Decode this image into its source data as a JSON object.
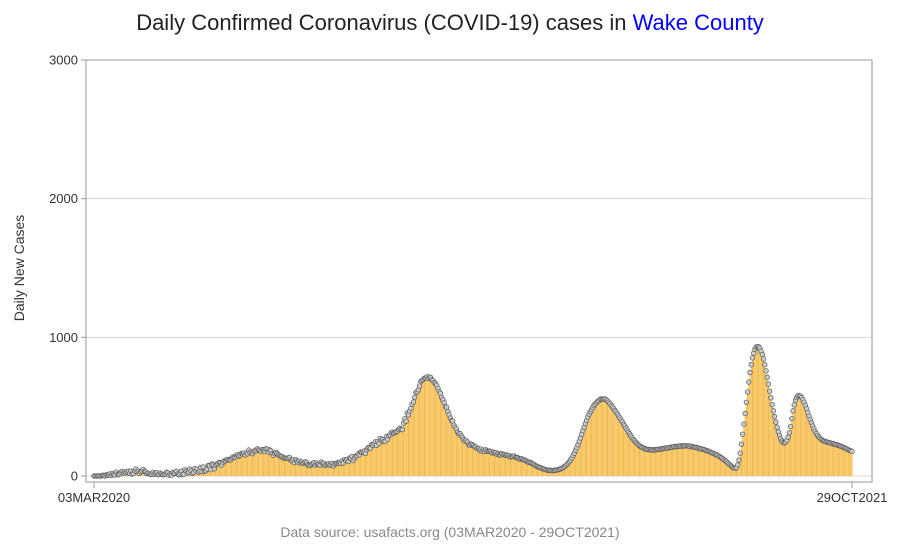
{
  "chart_data": {
    "type": "needle",
    "title_prefix": "Daily Confirmed Coronavirus (COVID-19) cases in ",
    "title_highlight": "Wake County",
    "ylabel": "Daily New Cases",
    "ylim": [
      0,
      3000
    ],
    "yticks": [
      0,
      1000,
      2000,
      3000
    ],
    "xlim": [
      "2020-03-03",
      "2021-10-29"
    ],
    "xtick_labels": [
      "03MAR2020",
      "29OCT2021"
    ],
    "grid": "horizontal",
    "source": "Data source: usafacts.org (03MAR2020 - 29OCT2021)",
    "colors": {
      "needle": "#f5b942",
      "marker_fill": "#cccccc",
      "marker_stroke": "#555555",
      "highlight": "#0000ff",
      "grid": "#d8d8d8",
      "frame": "#999999"
    },
    "series": [
      {
        "values": [
          0,
          0,
          0,
          0,
          1,
          0,
          2,
          5,
          5,
          0,
          8,
          5,
          10,
          15,
          4,
          16,
          10,
          7,
          28,
          13,
          9,
          14,
          28,
          34,
          21,
          29,
          23,
          30,
          35,
          18,
          35,
          14,
          18,
          37,
          50,
          31,
          35,
          20,
          31,
          37,
          48,
          33,
          31,
          18,
          21,
          18,
          10,
          13,
          27,
          12,
          20,
          25,
          9,
          10,
          21,
          14,
          8,
          11,
          15,
          28,
          22,
          5,
          15,
          7,
          25,
          16,
          21,
          35,
          14,
          8,
          15,
          35,
          11,
          12,
          45,
          34,
          22,
          29,
          50,
          37,
          17,
          26,
          53,
          37,
          49,
          28,
          36,
          61,
          31,
          66,
          34,
          38,
          51,
          76,
          73,
          46,
          86,
          81,
          52,
          77,
          87,
          89,
          99,
          95,
          79,
          98,
          109,
          109,
          118,
          120,
          115,
          115,
          126,
          138,
          133,
          135,
          149,
          154,
          143,
          150,
          162,
          160,
          166,
          152,
          167,
          160,
          187,
          168,
          172,
          161,
          176,
          185,
          182,
          196,
          187,
          185,
          177,
          190,
          190,
          180,
          196,
          194,
          174,
          188,
          182,
          160,
          150,
          162,
          171,
          163,
          153,
          147,
          141,
          141,
          131,
          130,
          129,
          128,
          128,
          134,
          115,
          108,
          116,
          97,
          118,
          108,
          100,
          108,
          95,
          101,
          91,
          97,
          102,
          97,
          81,
          77,
          75,
          85,
          93,
          95,
          79,
          94,
          84,
          83,
          77,
          101,
          91,
          92,
          76,
          84,
          83,
          89,
          78,
          80,
          91,
          73,
          88,
          89,
          95,
          93,
          100,
          91,
          109,
          95,
          119,
          112,
          118,
          105,
          130,
          128,
          141,
          111,
          130,
          143,
          145,
          159,
          153,
          173,
          170,
          175,
          180,
          163,
          190,
          204,
          204,
          199,
          227,
          222,
          233,
          247,
          221,
          248,
          236,
          271,
          255,
          262,
          249,
          250,
          284,
          265,
          290,
          296,
          311,
          316,
          308,
          313,
          319,
          324,
          335,
          344,
          337,
          334,
          381,
          414,
          395,
          453,
          440,
          469,
          489,
          518,
          534,
          567,
          601,
          608,
          622,
          649,
          681,
          690,
          696,
          706,
          708,
          716,
          704,
          713,
          711,
          694,
          687,
          674,
          664,
          654,
          632,
          609,
          595,
          567,
          549,
          527,
          501,
          496,
          465,
          443,
          418,
          400,
          396,
          367,
          351,
          338,
          315,
          304,
          306,
          289,
          277,
          262,
          251,
          256,
          245,
          226,
          220,
          230,
          225,
          217,
          209,
          211,
          198,
          198,
          185,
          194,
          180,
          187,
          177,
          188,
          179,
          180,
          179,
          175,
          167,
          172,
          166,
          168,
          157,
          162,
          153,
          151,
          161,
          155,
          156,
          149,
          152,
          146,
          148,
          137,
          140,
          141,
          145,
          135,
          133,
          131,
          125,
          122,
          125,
          121,
          115,
          114,
          108,
          102,
          98,
          99,
          94,
          88,
          84,
          77,
          72,
          68,
          64,
          61,
          58,
          53,
          51,
          47,
          45,
          42,
          42,
          41,
          40,
          39,
          40,
          41,
          42,
          44,
          47,
          49,
          53,
          57,
          62,
          68,
          75,
          84,
          94,
          104,
          116,
          131,
          148,
          165,
          185,
          205,
          226,
          249,
          274,
          301,
          328,
          352,
          378,
          402,
          426,
          446,
          463,
          478,
          494,
          508,
          517,
          528,
          538,
          543,
          553,
          555,
          554,
          555,
          555,
          549,
          541,
          532,
          522,
          509,
          498,
          485,
          473,
          461,
          446,
          432,
          418,
          403,
          390,
          374,
          361,
          346,
          332,
          316,
          304,
          290,
          275,
          263,
          253,
          243,
          234,
          226,
          218,
          212,
          207,
          203,
          198,
          195,
          192,
          191,
          190,
          189,
          189,
          187,
          190,
          188,
          191,
          193,
          192,
          194,
          196,
          197,
          199,
          201,
          203,
          201,
          203,
          207,
          207,
          208,
          213,
          211,
          212,
          214,
          215,
          217,
          213,
          218,
          217,
          217,
          219,
          217,
          216,
          212,
          216,
          211,
          209,
          206,
          206,
          204,
          202,
          197,
          196,
          194,
          192,
          190,
          184,
          182,
          180,
          176,
          172,
          167,
          164,
          160,
          155,
          152,
          146,
          141,
          135,
          130,
          123,
          115,
          108,
          101,
          93,
          86,
          78,
          70,
          62,
          57,
          55,
          61,
          80,
          115,
          165,
          230,
          301,
          374,
          451,
          532,
          606,
          678,
          746,
          803,
          852,
          886,
          914,
          930,
          934,
          932,
          922,
          900,
          876,
          845,
          803,
          759,
          712,
          663,
          612,
          564,
          515,
          470,
          428,
          389,
          352,
          319,
          292,
          269,
          252,
          242,
          239,
          245,
          258,
          280,
          313,
          357,
          414,
          470,
          513,
          546,
          566,
          578,
          580,
          577,
          566,
          551,
          532,
          509,
          484,
          458,
          432,
          407,
          383,
          360,
          339,
          321,
          305,
          293,
          281,
          272,
          264,
          258,
          253,
          250,
          246,
          244,
          242,
          239,
          237,
          234,
          232,
          229,
          227,
          224,
          221,
          218,
          214,
          211,
          207,
          203,
          198,
          195,
          190,
          185,
          182,
          178
        ]
      }
    ]
  }
}
